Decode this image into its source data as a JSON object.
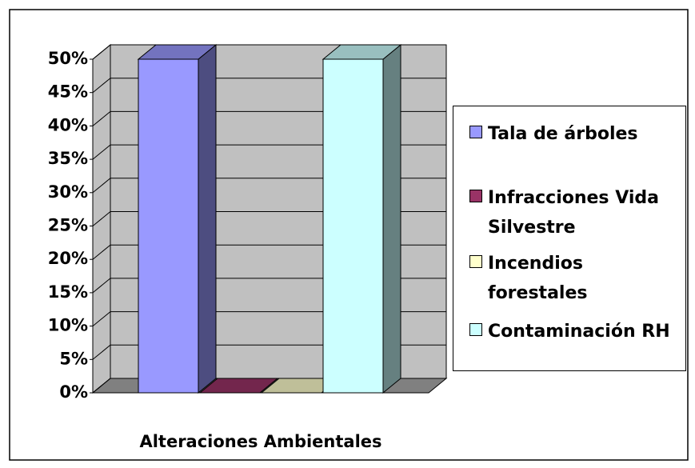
{
  "chart_data": {
    "type": "bar3d",
    "categories": [
      "Alteraciones Ambientales"
    ],
    "series": [
      {
        "name": "Tala de árboles",
        "color": "#9999ff",
        "values": [
          50
        ]
      },
      {
        "name": "Infracciones Vida Silvestre",
        "color": "#993366",
        "values": [
          0
        ]
      },
      {
        "name": "Incendios forestales",
        "color": "#ffffcc",
        "values": [
          0
        ]
      },
      {
        "name": "Contaminación RH",
        "color": "#ccffff",
        "values": [
          50
        ]
      }
    ],
    "ylim": [
      0,
      50
    ],
    "yticks": [
      {
        "value": 0,
        "label": "0%"
      },
      {
        "value": 5,
        "label": "5%"
      },
      {
        "value": 10,
        "label": "10%"
      },
      {
        "value": 15,
        "label": "15%"
      },
      {
        "value": 20,
        "label": "20%"
      },
      {
        "value": 25,
        "label": "25%"
      },
      {
        "value": 30,
        "label": "30%"
      },
      {
        "value": 35,
        "label": "35%"
      },
      {
        "value": 40,
        "label": "40%"
      },
      {
        "value": 45,
        "label": "45%"
      },
      {
        "value": 50,
        "label": "50%"
      }
    ],
    "grid": true,
    "legend": "right"
  }
}
